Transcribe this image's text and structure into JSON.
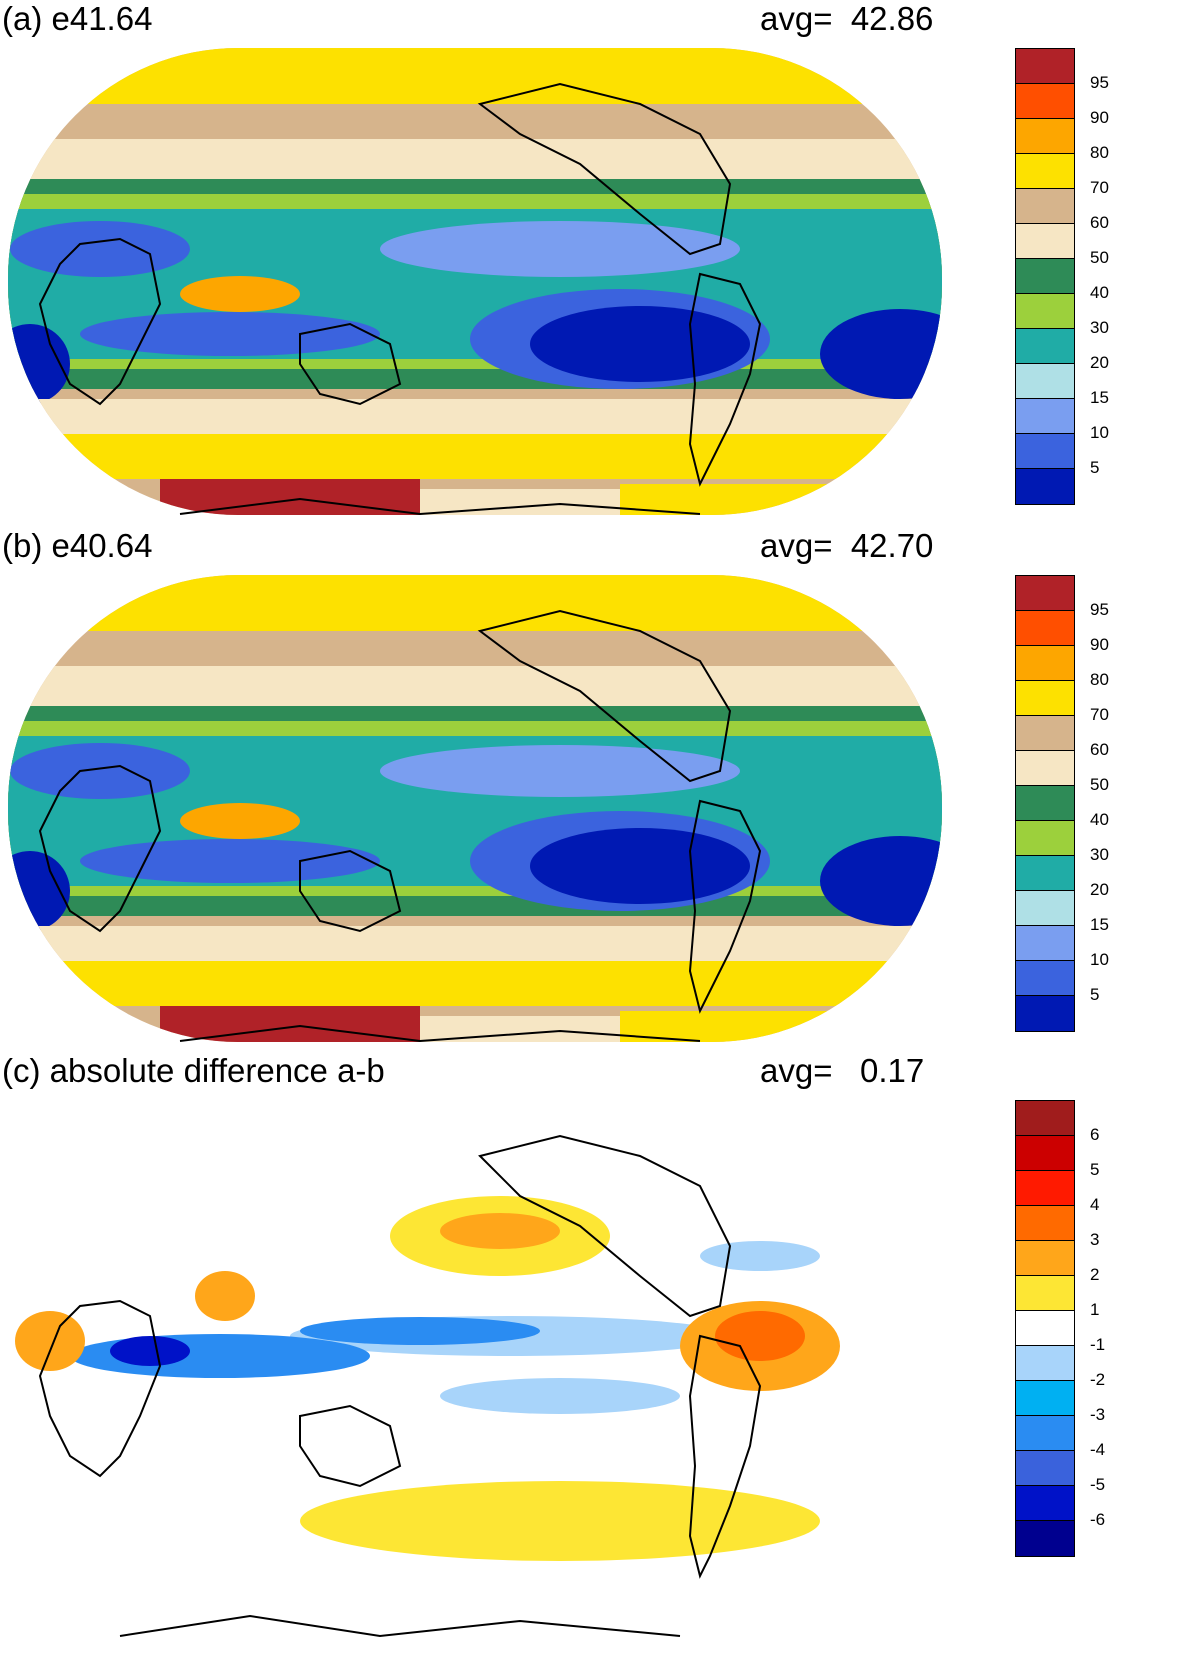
{
  "panels": [
    {
      "id": "a",
      "title": "(a) e41.64",
      "avg_label": "avg=  42.86",
      "colorbar": {
        "colors": [
          "#0019b3",
          "#3b63de",
          "#7a9ef0",
          "#afe0e6",
          "#20aca6",
          "#9cd03c",
          "#2e8b57",
          "#f6e6c4",
          "#d6b48c",
          "#fde100",
          "#fda600",
          "#ff4f00",
          "#b02228"
        ],
        "labels": [
          "5",
          "10",
          "15",
          "20",
          "30",
          "40",
          "50",
          "60",
          "70",
          "80",
          "90",
          "95"
        ]
      }
    },
    {
      "id": "b",
      "title": "(b) e40.64",
      "avg_label": "avg=  42.70",
      "colorbar": {
        "colors": [
          "#0019b3",
          "#3b63de",
          "#7a9ef0",
          "#afe0e6",
          "#20aca6",
          "#9cd03c",
          "#2e8b57",
          "#f6e6c4",
          "#d6b48c",
          "#fde100",
          "#fda600",
          "#ff4f00",
          "#b02228"
        ],
        "labels": [
          "5",
          "10",
          "15",
          "20",
          "30",
          "40",
          "50",
          "60",
          "70",
          "80",
          "90",
          "95"
        ]
      }
    },
    {
      "id": "c",
      "title": "(c) absolute difference a-b",
      "avg_label": "avg=   0.17",
      "colorbar": {
        "colors": [
          "#00008f",
          "#0012c8",
          "#3a62dc",
          "#2a8cf2",
          "#00b0f2",
          "#a8d4fa",
          "#ffffff",
          "#fde634",
          "#ffa61a",
          "#ff6a00",
          "#ff1a00",
          "#cc0000",
          "#a01c1c"
        ],
        "labels": [
          "-6",
          "-5",
          "-4",
          "-3",
          "-2",
          "-1",
          "1",
          "2",
          "3",
          "4",
          "5",
          "6"
        ]
      }
    }
  ]
}
